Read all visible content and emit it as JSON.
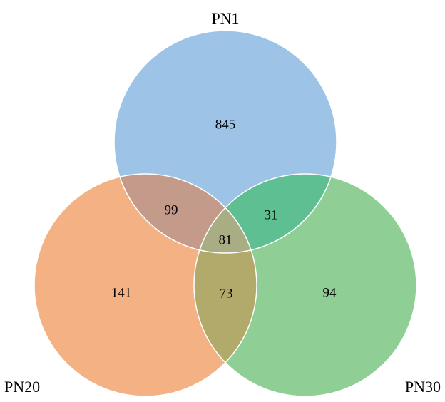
{
  "sets": [
    {
      "key": "pn1",
      "label": "PN1",
      "color": "#9dc3e6"
    },
    {
      "key": "pn20",
      "label": "PN20",
      "color": "#f4b183"
    },
    {
      "key": "pn30",
      "label": "PN30",
      "color": "#8fce95"
    }
  ],
  "regions": {
    "pn1_only": "845",
    "pn20_only": "141",
    "pn30_only": "94",
    "pn1_pn20": "99",
    "pn1_pn30": "31",
    "pn20_pn30": "73",
    "all_three": "81"
  },
  "overlap_colors": {
    "pn1_pn20": "#c49a8a",
    "pn1_pn30": "#5dbf92",
    "pn20_pn30": "#b2aa6b",
    "all_three": "#a8ad84"
  }
}
